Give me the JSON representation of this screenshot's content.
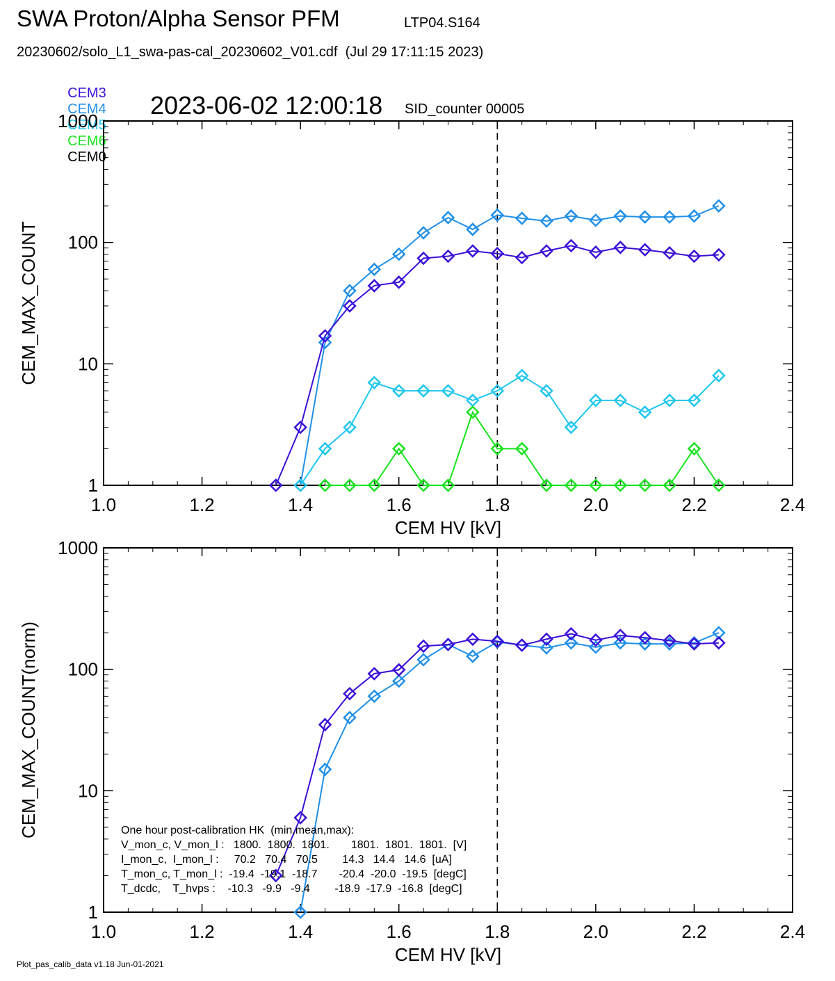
{
  "header": {
    "title": "SWA Proton/Alpha Sensor PFM",
    "tag": "LTP04.S164",
    "file": "20230602/solo_L1_swa-pas-cal_20230602_V01.cdf  (Jul 29 17:11:15 2023)",
    "timestamp": "2023-06-02 12:00:18",
    "sid": "SID_counter 00005"
  },
  "legend": [
    {
      "label": "CEM3",
      "color": "#3a10d8"
    },
    {
      "label": "CEM4",
      "color": "#1f8fe8"
    },
    {
      "label": "CEM5",
      "color": "#1cc6ee"
    },
    {
      "label": "CEM6",
      "color": "#19e21f"
    },
    {
      "label": "CEM0",
      "color": "#000000"
    }
  ],
  "footer": "Plot_pas_calib_data v1.18 Jun-01-2021",
  "hk_text": [
    "One hour post-calibration HK  (min,mean,max):",
    "V_mon_c, V_mon_l :   1800.  1800.  1801.       1801.  1801.  1801.  [V]",
    "I_mon_c,  I_mon_l :     70.2   70.4   70.5        14.3   14.4   14.6  [uA]",
    "T_mon_c, T_mon_l :  -19.4  -19.1  -18.7       -20.4  -20.0  -19.5  [degC]",
    "T_dcdc,    T_hvps :    -10.3   -9.9   -9.4        -18.9  -17.9  -16.8  [degC]"
  ],
  "chart_data": [
    {
      "type": "line",
      "xlabel": "CEM HV [kV]",
      "ylabel": "CEM_MAX_COUNT",
      "xlim": [
        1.0,
        2.4
      ],
      "ylim": [
        1,
        1000
      ],
      "yscale": "log",
      "xticks": [
        "1.0",
        "1.2",
        "1.4",
        "1.6",
        "1.8",
        "2.0",
        "2.2",
        "2.4"
      ],
      "yticks": [
        "1",
        "10",
        "100",
        "1000"
      ],
      "vline": 1.8,
      "series": [
        {
          "name": "CEM4",
          "color": "#1f8fe8",
          "x": [
            1.4,
            1.45,
            1.5,
            1.55,
            1.6,
            1.65,
            1.7,
            1.75,
            1.8,
            1.85,
            1.9,
            1.95,
            2.0,
            2.05,
            2.1,
            2.15,
            2.2,
            2.25
          ],
          "y": [
            1,
            15,
            40,
            60,
            80,
            120,
            160,
            128,
            168,
            158,
            150,
            165,
            152,
            165,
            162,
            162,
            165,
            200
          ]
        },
        {
          "name": "CEM3",
          "color": "#3a10d8",
          "x": [
            1.35,
            1.4,
            1.45,
            1.5,
            1.55,
            1.6,
            1.65,
            1.7,
            1.75,
            1.8,
            1.85,
            1.9,
            1.95,
            2.0,
            2.05,
            2.1,
            2.15,
            2.2,
            2.25
          ],
          "y": [
            1,
            3,
            17,
            30,
            44,
            47,
            74,
            77,
            85,
            81,
            75,
            85,
            94,
            83,
            91,
            87,
            82,
            77,
            79
          ]
        },
        {
          "name": "CEM5",
          "color": "#1cc6ee",
          "x": [
            1.4,
            1.45,
            1.5,
            1.55,
            1.6,
            1.65,
            1.7,
            1.75,
            1.8,
            1.85,
            1.9,
            1.95,
            2.0,
            2.05,
            2.1,
            2.15,
            2.2,
            2.25
          ],
          "y": [
            1,
            2,
            3,
            7,
            6,
            6,
            6,
            5,
            6,
            8,
            6,
            3,
            5,
            5,
            4,
            5,
            5,
            8
          ]
        },
        {
          "name": "CEM6",
          "color": "#19e21f",
          "x": [
            1.45,
            1.5,
            1.55,
            1.6,
            1.65,
            1.7,
            1.75,
            1.8,
            1.85,
            1.9,
            1.95,
            2.0,
            2.05,
            2.1,
            2.15,
            2.2,
            2.25
          ],
          "y": [
            1,
            1,
            1,
            2,
            1,
            1,
            4,
            2,
            2,
            1,
            1,
            1,
            1,
            1,
            1,
            2,
            1
          ]
        }
      ]
    },
    {
      "type": "line",
      "xlabel": "CEM HV [kV]",
      "ylabel": "CEM_MAX_COUNT(norm)",
      "xlim": [
        1.0,
        2.4
      ],
      "ylim": [
        1,
        1000
      ],
      "yscale": "log",
      "xticks": [
        "1.0",
        "1.2",
        "1.4",
        "1.6",
        "1.8",
        "2.0",
        "2.2",
        "2.4"
      ],
      "yticks": [
        "1",
        "10",
        "100",
        "1000"
      ],
      "vline": 1.8,
      "series": [
        {
          "name": "CEM4",
          "color": "#1f8fe8",
          "x": [
            1.4,
            1.45,
            1.5,
            1.55,
            1.6,
            1.65,
            1.7,
            1.75,
            1.8,
            1.85,
            1.9,
            1.95,
            2.0,
            2.05,
            2.1,
            2.15,
            2.2,
            2.25
          ],
          "y": [
            1,
            15,
            40,
            60,
            80,
            120,
            160,
            128,
            168,
            158,
            150,
            165,
            152,
            165,
            162,
            162,
            165,
            200
          ]
        },
        {
          "name": "CEM3",
          "color": "#3a10d8",
          "x": [
            1.35,
            1.4,
            1.45,
            1.5,
            1.55,
            1.6,
            1.65,
            1.7,
            1.75,
            1.8,
            1.85,
            1.9,
            1.95,
            2.0,
            2.05,
            2.1,
            2.15,
            2.2,
            2.25
          ],
          "y": [
            2,
            6,
            35,
            63,
            92,
            99,
            155,
            160,
            177,
            170,
            158,
            177,
            196,
            174,
            190,
            182,
            172,
            162,
            165
          ]
        }
      ]
    }
  ]
}
